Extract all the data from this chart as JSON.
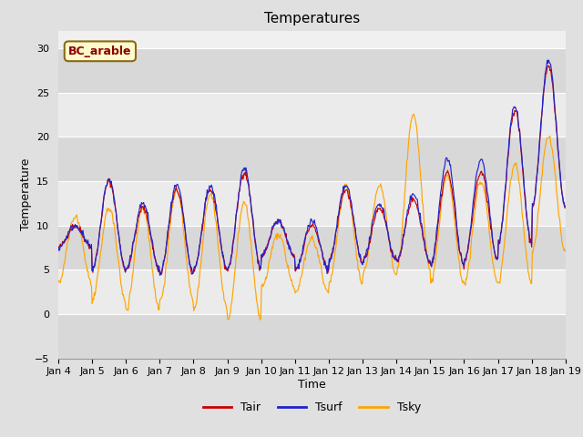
{
  "title": "Temperatures",
  "xlabel": "Time",
  "ylabel": "Temperature",
  "ylim": [
    -5,
    32
  ],
  "annotation_text": "BC_arable",
  "annotation_color": "#8B0000",
  "annotation_bg": "#FFFACD",
  "annotation_border": "#8B6914",
  "tair_color": "#CC0000",
  "tsurf_color": "#2222CC",
  "tsky_color": "#FFA500",
  "legend_labels": [
    "Tair",
    "Tsurf",
    "Tsky"
  ],
  "xtick_labels": [
    "Jan 4",
    "Jan 5",
    "Jan 6",
    "Jan 7",
    "Jan 8",
    "Jan 9",
    "Jan 10",
    "Jan 11",
    "Jan 12",
    "Jan 13",
    "Jan 14",
    "Jan 15",
    "Jan 16",
    "Jan 17",
    "Jan 18",
    "Jan 19"
  ],
  "n_points": 720,
  "background_color": "#E0E0E0",
  "plot_bg": "#F0F0F0",
  "band_color_dark": "#D8D8D8",
  "band_color_light": "#EBEBEB",
  "title_fontsize": 11,
  "axis_label_fontsize": 9,
  "tick_fontsize": 8
}
